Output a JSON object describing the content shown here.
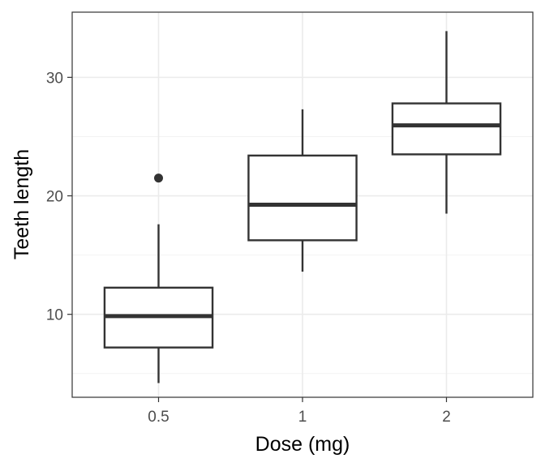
{
  "chart_data": {
    "type": "boxplot",
    "title": "",
    "xlabel": "Dose (mg)",
    "ylabel": "Teeth length",
    "categories": [
      "0.5",
      "1",
      "2"
    ],
    "ylim": [
      3.0,
      35.5
    ],
    "y_ticks": [
      10,
      20,
      30
    ],
    "y_minor_ticks": [
      5,
      15,
      25
    ],
    "grid": true,
    "legend": "none",
    "boxes": [
      {
        "category": "0.5",
        "whisker_low": 4.2,
        "q1": 7.2,
        "median": 9.85,
        "q3": 12.25,
        "whisker_high": 17.6,
        "outliers": [
          21.5
        ]
      },
      {
        "category": "1",
        "whisker_low": 13.6,
        "q1": 16.25,
        "median": 19.25,
        "q3": 23.4,
        "whisker_high": 27.3,
        "outliers": []
      },
      {
        "category": "2",
        "whisker_low": 18.5,
        "q1": 23.5,
        "median": 25.95,
        "q3": 27.8,
        "whisker_high": 33.9,
        "outliers": []
      }
    ],
    "colors": {
      "box_line": "#333333",
      "box_fill": "#ffffff",
      "grid_major": "#ebebeb",
      "grid_minor": "#f3f3f3",
      "tick_label": "#4d4d4d",
      "axis_title": "#000000"
    }
  }
}
